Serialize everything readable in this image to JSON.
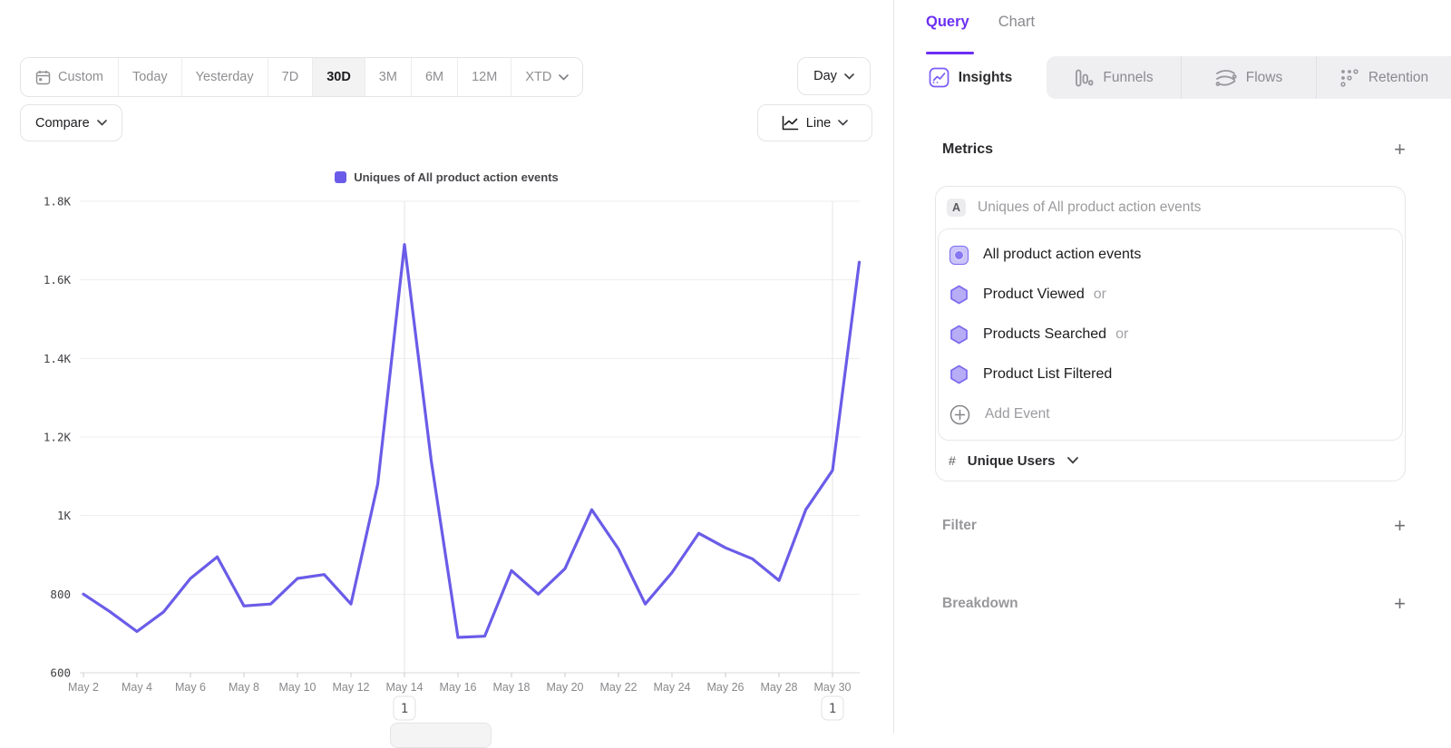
{
  "toolbar": {
    "date_ranges": [
      "Custom",
      "Today",
      "Yesterday",
      "7D",
      "30D",
      "3M",
      "6M",
      "12M",
      "XTD"
    ],
    "selected_range": "30D",
    "granularity_label": "Day",
    "compare_label": "Compare",
    "chart_type_label": "Line"
  },
  "icons": {
    "plus": "+"
  },
  "legend": {
    "label": "Uniques of All product action events"
  },
  "chart_data": {
    "type": "line",
    "title": "Uniques of All product action events",
    "x": [
      "May 2",
      "May 3",
      "May 4",
      "May 5",
      "May 6",
      "May 7",
      "May 8",
      "May 9",
      "May 10",
      "May 11",
      "May 12",
      "May 13",
      "May 14",
      "May 15",
      "May 16",
      "May 17",
      "May 18",
      "May 19",
      "May 20",
      "May 21",
      "May 22",
      "May 23",
      "May 24",
      "May 25",
      "May 26",
      "May 27",
      "May 28",
      "May 29",
      "May 30",
      "May 31"
    ],
    "series": [
      {
        "name": "Uniques of All product action events",
        "values": [
          800,
          755,
          705,
          755,
          840,
          895,
          770,
          775,
          840,
          850,
          775,
          1080,
          1690,
          1140,
          690,
          693,
          860,
          800,
          865,
          1015,
          915,
          775,
          855,
          955,
          918,
          890,
          835,
          1015,
          1115,
          1645
        ]
      }
    ],
    "ylim": [
      600,
      1800
    ],
    "y_tick_values": [
      1800,
      1600,
      1400,
      1200,
      1000,
      800,
      600
    ],
    "y_tick_labels": [
      "1.8K",
      "1.6K",
      "1.4K",
      "1.2K",
      "1K",
      "800",
      "600"
    ],
    "x_label_every": 2,
    "grid": true,
    "legend_position": "top-center",
    "line_color": "#6a5ce8",
    "annotations": [
      {
        "x": "May 14",
        "label": "1"
      },
      {
        "x": "May 30",
        "label": "1"
      }
    ]
  },
  "panel": {
    "top_tabs": [
      {
        "label": "Query",
        "active": true
      },
      {
        "label": "Chart",
        "active": false
      }
    ],
    "view_tabs": [
      {
        "label": "Insights",
        "active": true
      },
      {
        "label": "Funnels",
        "active": false
      },
      {
        "label": "Flows",
        "active": false
      },
      {
        "label": "Retention",
        "active": false
      }
    ],
    "metrics": {
      "title": "Metrics",
      "group_label": "A",
      "group_title": "Uniques of All product action events",
      "events": [
        {
          "name": "All product action events",
          "suffix": ""
        },
        {
          "name": "Product Viewed",
          "suffix": "or"
        },
        {
          "name": "Products Searched",
          "suffix": "or"
        },
        {
          "name": "Product List Filtered",
          "suffix": ""
        }
      ],
      "add_event_label": "Add Event",
      "measurement": {
        "prefix": "#",
        "label": "Unique Users"
      }
    },
    "filter": {
      "title": "Filter"
    },
    "breakdown": {
      "title": "Breakdown"
    }
  }
}
